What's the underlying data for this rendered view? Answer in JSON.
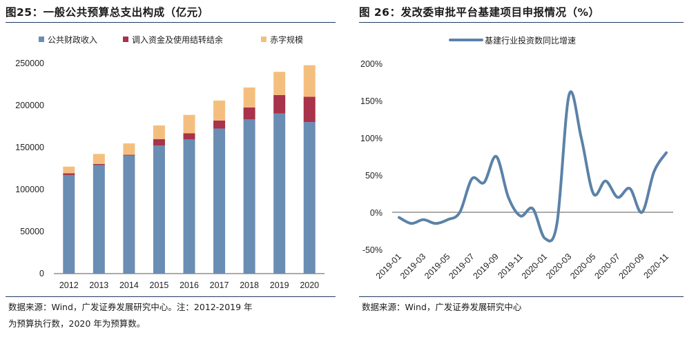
{
  "left_panel": {
    "title": "图25：一般公共预算总支出构成（亿元）",
    "source_line1": "数据来源：Wind，广发证券发展研究中心。注：2012-2019 年",
    "source_line2": "为预算执行数，2020 年为预算数。"
  },
  "right_panel": {
    "title": "图 26：发改委审批平台基建项目申报情况（%）",
    "source_line1": "数据来源：Wind，广发证券发展研究中心"
  },
  "colors": {
    "revenue": "#6a8db3",
    "adjust": "#a8334a",
    "deficit": "#f4bf7e",
    "line": "#5b82a8",
    "rule": "#1f3864"
  },
  "chart_data": [
    {
      "type": "bar",
      "stacked": true,
      "title": "一般公共预算总支出构成（亿元）",
      "categories": [
        "2012",
        "2013",
        "2014",
        "2015",
        "2016",
        "2017",
        "2018",
        "2019",
        "2020"
      ],
      "series": [
        {
          "name": "公共财政收入",
          "values": [
            117254,
            129143,
            140350,
            152217,
            159552,
            172567,
            183352,
            190382,
            180270
          ]
        },
        {
          "name": "调入资金及使用结转结余",
          "values": [
            2000,
            1200,
            1000,
            7800,
            7400,
            9500,
            14200,
            22000,
            29980
          ]
        },
        {
          "name": "赤字规模",
          "values": [
            8000,
            12000,
            13500,
            16200,
            21800,
            23800,
            23800,
            27600,
            37600
          ]
        }
      ],
      "yticks": [
        0,
        50000,
        100000,
        150000,
        200000,
        250000
      ],
      "ylim": [
        0,
        250000
      ],
      "legend": "top"
    },
    {
      "type": "line",
      "title": "发改委审批平台基建项目申报情况（%）",
      "series": [
        {
          "name": "基建行业投资数同比增速",
          "x": [
            "2019-01",
            "2019-02",
            "2019-03",
            "2019-04",
            "2019-05",
            "2019-06",
            "2019-07",
            "2019-08",
            "2019-09",
            "2019-10",
            "2019-11",
            "2019-12",
            "2020-01",
            "2020-02",
            "2020-03",
            "2020-04",
            "2020-05",
            "2020-06",
            "2020-07",
            "2020-08",
            "2020-09",
            "2020-10",
            "2020-11"
          ],
          "values": [
            -7,
            -15,
            -10,
            -15,
            -10,
            0,
            45,
            40,
            75,
            20,
            -5,
            5,
            -35,
            -15,
            158,
            100,
            25,
            42,
            20,
            32,
            0,
            55,
            80
          ]
        }
      ],
      "xticks": [
        "2019-01",
        "2019-03",
        "2019-05",
        "2019-07",
        "2019-09",
        "2019-11",
        "2020-01",
        "2020-03",
        "2020-05",
        "2020-07",
        "2020-09",
        "2020-11"
      ],
      "yticks": [
        "-50%",
        "0%",
        "50%",
        "100%",
        "150%",
        "200%"
      ],
      "yvalues": [
        -50,
        0,
        50,
        100,
        150,
        200
      ],
      "ylim": [
        -50,
        200
      ],
      "legend": "top"
    }
  ]
}
